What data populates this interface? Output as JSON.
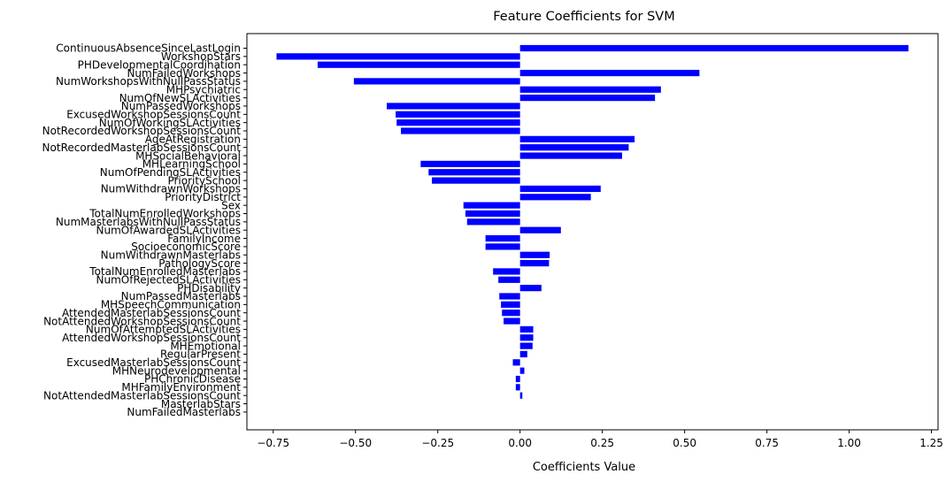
{
  "chart_data": {
    "type": "bar",
    "orientation": "horizontal",
    "title": "Feature Coefficients for SVM",
    "xlabel": "Coefficients Value",
    "ylabel": "",
    "xlim": [
      -0.83,
      1.27
    ],
    "xticks": [
      -0.75,
      -0.5,
      -0.25,
      0.0,
      0.25,
      0.5,
      0.75,
      1.0,
      1.25
    ],
    "xtick_labels": [
      "−0.75",
      "−0.50",
      "−0.25",
      "0.00",
      "0.25",
      "0.50",
      "0.75",
      "1.00",
      "1.25"
    ],
    "bar_color": "#0000ff",
    "grid": false,
    "categories": [
      "ContinuousAbsenceSinceLastLogin",
      "WorkshopStars",
      "PHDevelopmentalCoordination",
      "NumFailedWorkshops",
      "NumWorkshopsWithNullPassStatus",
      "MHPsychiatric",
      "NumOfNewSLActivities",
      "NumPassedWorkshops",
      "ExcusedWorkshopSessionsCount",
      "NumOfWorkingSLActivities",
      "NotRecordedWorkshopSessionsCount",
      "AgeAtRegistration",
      "NotRecordedMasterlabSessionsCount",
      "MHSocialBehavioral",
      "MHLearningSchool",
      "NumOfPendingSLActivities",
      "PrioritySchool",
      "NumWithdrawnWorkshops",
      "PriorityDistrict",
      "Sex",
      "TotalNumEnrolledWorkshops",
      "NumMasterlabsWithNullPassStatus",
      "NumOfAwardedSLActivities",
      "FamilyIncome",
      "SocioeconomicScore",
      "NumWithdrawnMasterlabs",
      "PathologyScore",
      "TotalNumEnrolledMasterlabs",
      "NumOfRejectedSLActivities",
      "PHDisability",
      "NumPassedMasterlabs",
      "MHSpeechCommunication",
      "AttendedMasterlabSessionsCount",
      "NotAttendedWorkshopSessionsCount",
      "NumOfAttemptedSLActivities",
      "AttendedWorkshopSessionsCount",
      "MHEmotional",
      "RegularPresent",
      "ExcusedMasterlabSessionsCount",
      "MHNeurodevelopmental",
      "PHChronicDisease",
      "MHFamilyEnvironment",
      "NotAttendedMasterlabSessionsCount",
      "MasterlabStars",
      "NumFailedMasterlabs"
    ],
    "values": [
      1.18,
      -0.74,
      -0.615,
      0.545,
      -0.505,
      0.428,
      0.41,
      -0.405,
      -0.378,
      -0.375,
      -0.362,
      0.348,
      0.33,
      0.31,
      -0.302,
      -0.278,
      -0.268,
      0.245,
      0.215,
      -0.172,
      -0.166,
      -0.161,
      0.124,
      -0.105,
      -0.105,
      0.09,
      0.088,
      -0.082,
      -0.066,
      0.065,
      -0.063,
      -0.058,
      -0.055,
      -0.05,
      0.04,
      0.04,
      0.038,
      0.022,
      -0.022,
      0.013,
      -0.013,
      -0.013,
      0.007,
      0.0,
      0.0
    ]
  }
}
